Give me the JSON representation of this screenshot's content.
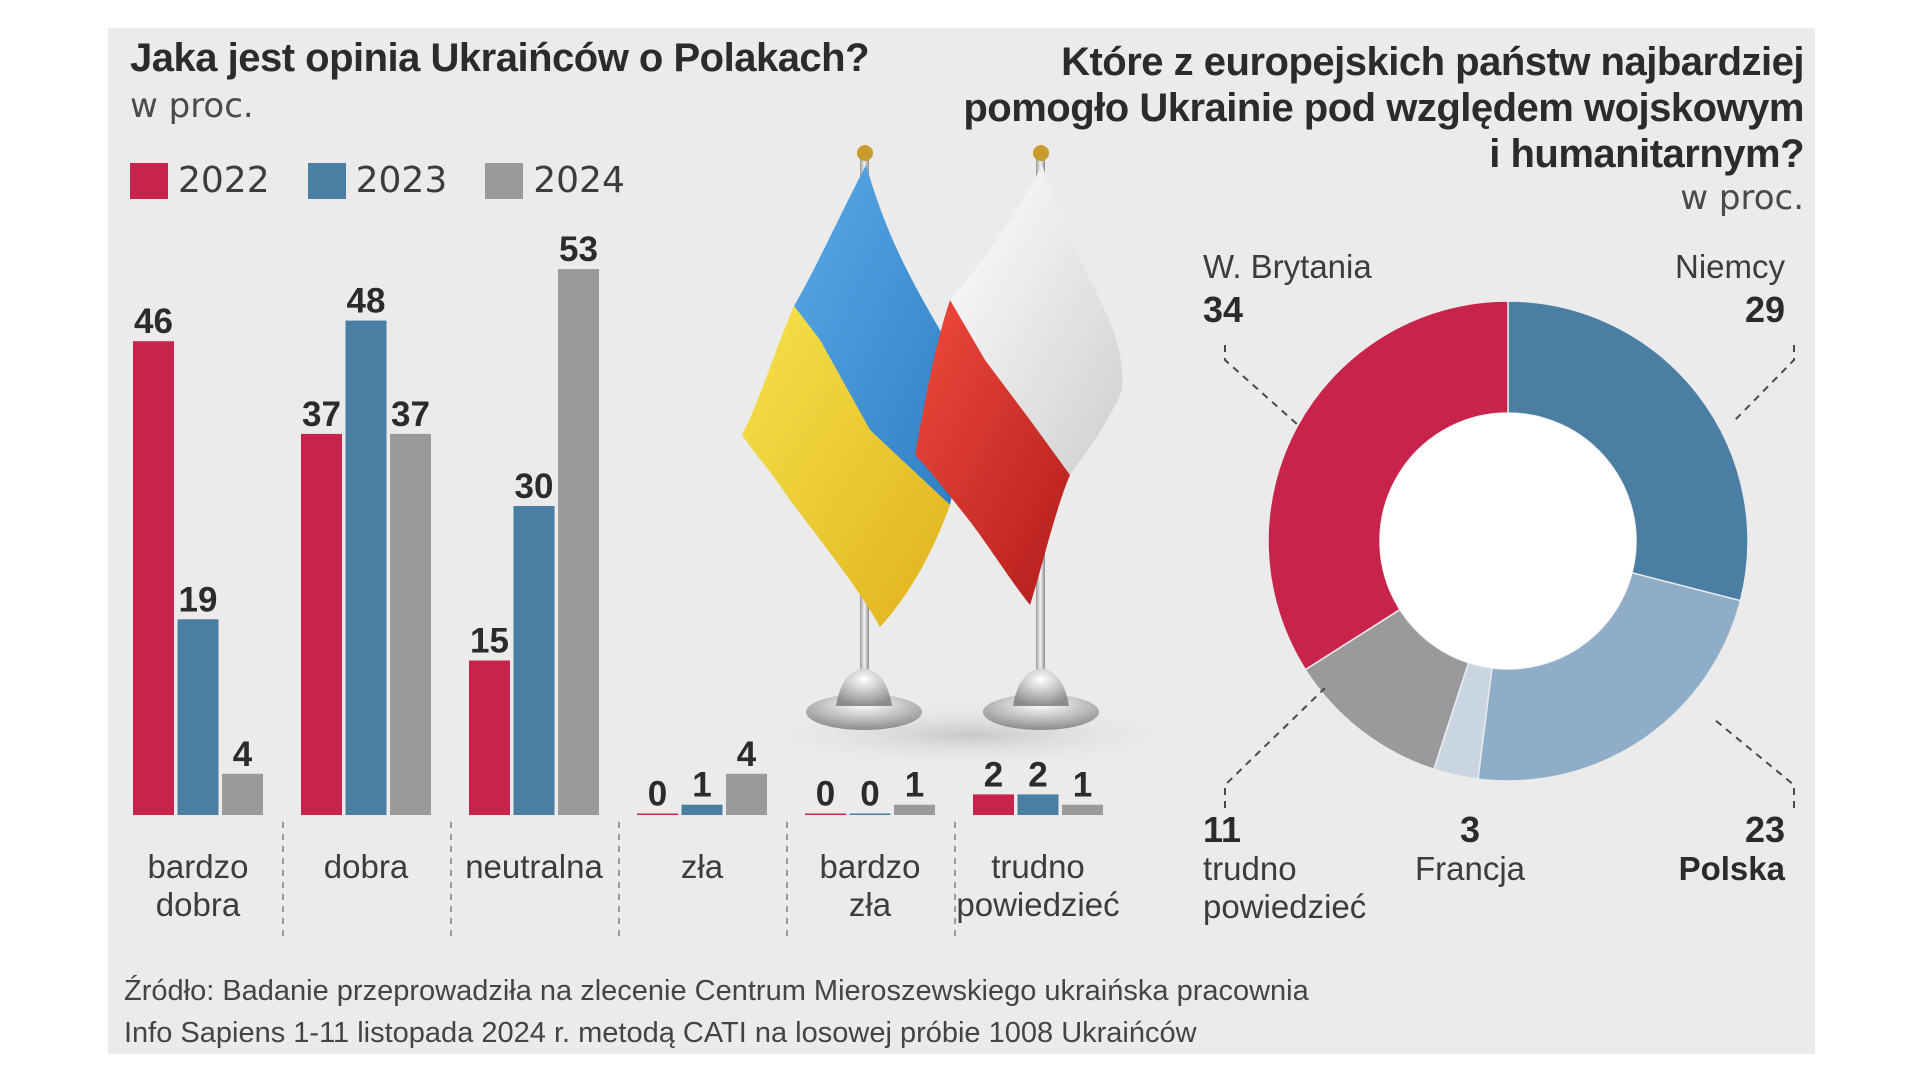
{
  "left_chart": {
    "title": "Jaka jest opinia Ukraińców o Polakach?",
    "unit": "w proc."
  },
  "right_chart": {
    "title_line1": "Które z europejskich państw najbardziej",
    "title_line2": "pomogło Ukrainie pod względem wojskowym",
    "title_line3": "i humanitarnym?",
    "unit": "w proc."
  },
  "chart_data": [
    {
      "type": "bar",
      "title": "Jaka jest opinia Ukraińców o Polakach?",
      "ylabel": "w proc.",
      "categories": [
        [
          "bardzo",
          "dobra"
        ],
        [
          "dobra"
        ],
        [
          "neutralna"
        ],
        [
          "zła"
        ],
        [
          "bardzo",
          "zła"
        ],
        [
          "trudno",
          "powiedzieć"
        ]
      ],
      "series": [
        {
          "name": "2022",
          "color": "#c8234b",
          "values": [
            46,
            37,
            15,
            0,
            0,
            2
          ]
        },
        {
          "name": "2023",
          "color": "#4a7ea3",
          "values": [
            19,
            48,
            30,
            1,
            0,
            2
          ]
        },
        {
          "name": "2024",
          "color": "#9a9a9c",
          "values": [
            4,
            37,
            53,
            4,
            1,
            1
          ]
        }
      ],
      "legend": "top-left",
      "grid": false
    },
    {
      "type": "pie",
      "title": "Które z europejskich państw najbardziej pomogło Ukrainie pod względem wojskowym i humanitarnym?",
      "unit": "w proc.",
      "slices": [
        {
          "label": "Niemcy",
          "value": 29,
          "color": "#4a7ea3"
        },
        {
          "label": "Polska",
          "value": 23,
          "color": "#8eadc8"
        },
        {
          "label": "Francja",
          "value": 3,
          "color": "#c9d6e2"
        },
        {
          "label": "trudno powiedzieć",
          "value": 11,
          "color": "#9a9a9c"
        },
        {
          "label": "W. Brytania",
          "value": 34,
          "color": "#c8234b"
        }
      ]
    }
  ],
  "source_line1": "Źródło: Badanie przeprowadziła na zlecenie Centrum Mieroszewskiego ukraińska pracownia",
  "source_line2": "Info Sapiens 1-11 listopada 2024 r. metodą CATI na losowej próbie 1008 Ukraińców"
}
